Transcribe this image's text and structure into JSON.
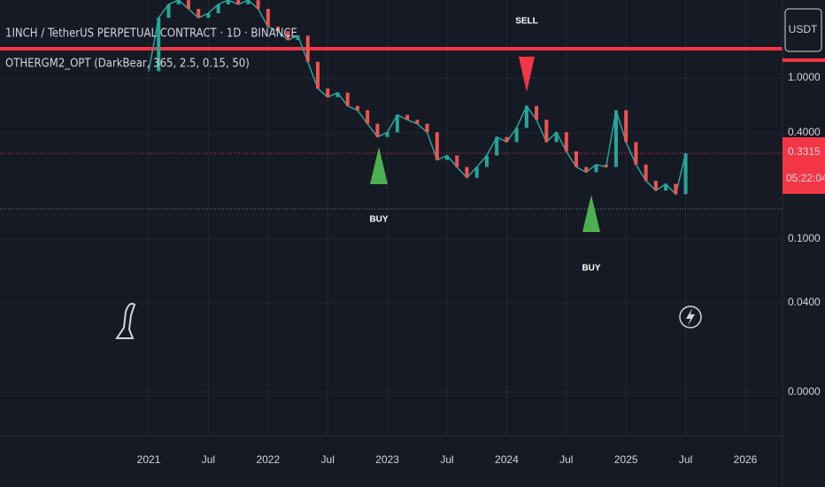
{
  "header": {
    "symbol": "1INCH / TetherUS PERPETUAL CONTRACT · 1D · BINANCE",
    "indicator": "OTHERGM2_OPT (DarkBear, 365, 2.5, 0.15, 50)"
  },
  "currency": "USDT",
  "price_axis": {
    "labels": [
      "1.0000",
      "0.4000",
      "0.1000",
      "0.0400",
      "0.0000"
    ],
    "current_price": "0.3315",
    "countdown": "05:22:04"
  },
  "time_axis": {
    "labels": [
      "2021",
      "Jul",
      "2022",
      "Jul",
      "2023",
      "Jul",
      "2024",
      "Jul",
      "2025",
      "Jul",
      "2026"
    ]
  },
  "signals": [
    {
      "label": "SELL"
    },
    {
      "label": "BUY"
    },
    {
      "label": "BUY"
    }
  ],
  "price": {
    "dates": [
      "2021-01",
      "2021-02",
      "2021-03",
      "2021-04",
      "2021-05",
      "2021-06",
      "2021-07",
      "2021-08",
      "2021-09",
      "2021-10",
      "2021-11",
      "2021-12",
      "2022-01",
      "2022-02",
      "2022-03",
      "2022-04",
      "2022-05",
      "2022-06",
      "2022-07",
      "2022-08",
      "2022-09",
      "2022-10",
      "2022-11",
      "2022-12",
      "2023-01",
      "2023-02",
      "2023-03",
      "2023-04",
      "2023-05",
      "2023-06",
      "2023-07",
      "2023-08",
      "2023-09",
      "2023-10",
      "2023-11",
      "2023-12",
      "2024-01",
      "2024-02",
      "2024-03",
      "2024-04",
      "2024-05",
      "2024-06",
      "2024-07",
      "2024-08",
      "2024-09",
      "2024-10",
      "2024-11",
      "2024-12",
      "2025-01",
      "2025-02",
      "2025-03",
      "2025-04",
      "2025-05",
      "2025-06",
      "2025-07"
    ],
    "closes": [
      1.1,
      2.36,
      2.86,
      3.04,
      2.68,
      2.36,
      2.52,
      2.86,
      3.04,
      2.86,
      3.04,
      2.68,
      2.08,
      1.95,
      1.72,
      1.83,
      1.26,
      0.86,
      0.76,
      0.81,
      0.67,
      0.63,
      0.52,
      0.43,
      0.46,
      0.59,
      0.55,
      0.52,
      0.46,
      0.31,
      0.33,
      0.28,
      0.24,
      0.28,
      0.33,
      0.43,
      0.4,
      0.49,
      0.67,
      0.55,
      0.4,
      0.46,
      0.35,
      0.28,
      0.26,
      0.29,
      0.28,
      0.63,
      0.4,
      0.29,
      0.23,
      0.2,
      0.22,
      0.19,
      0.34
    ]
  }
}
